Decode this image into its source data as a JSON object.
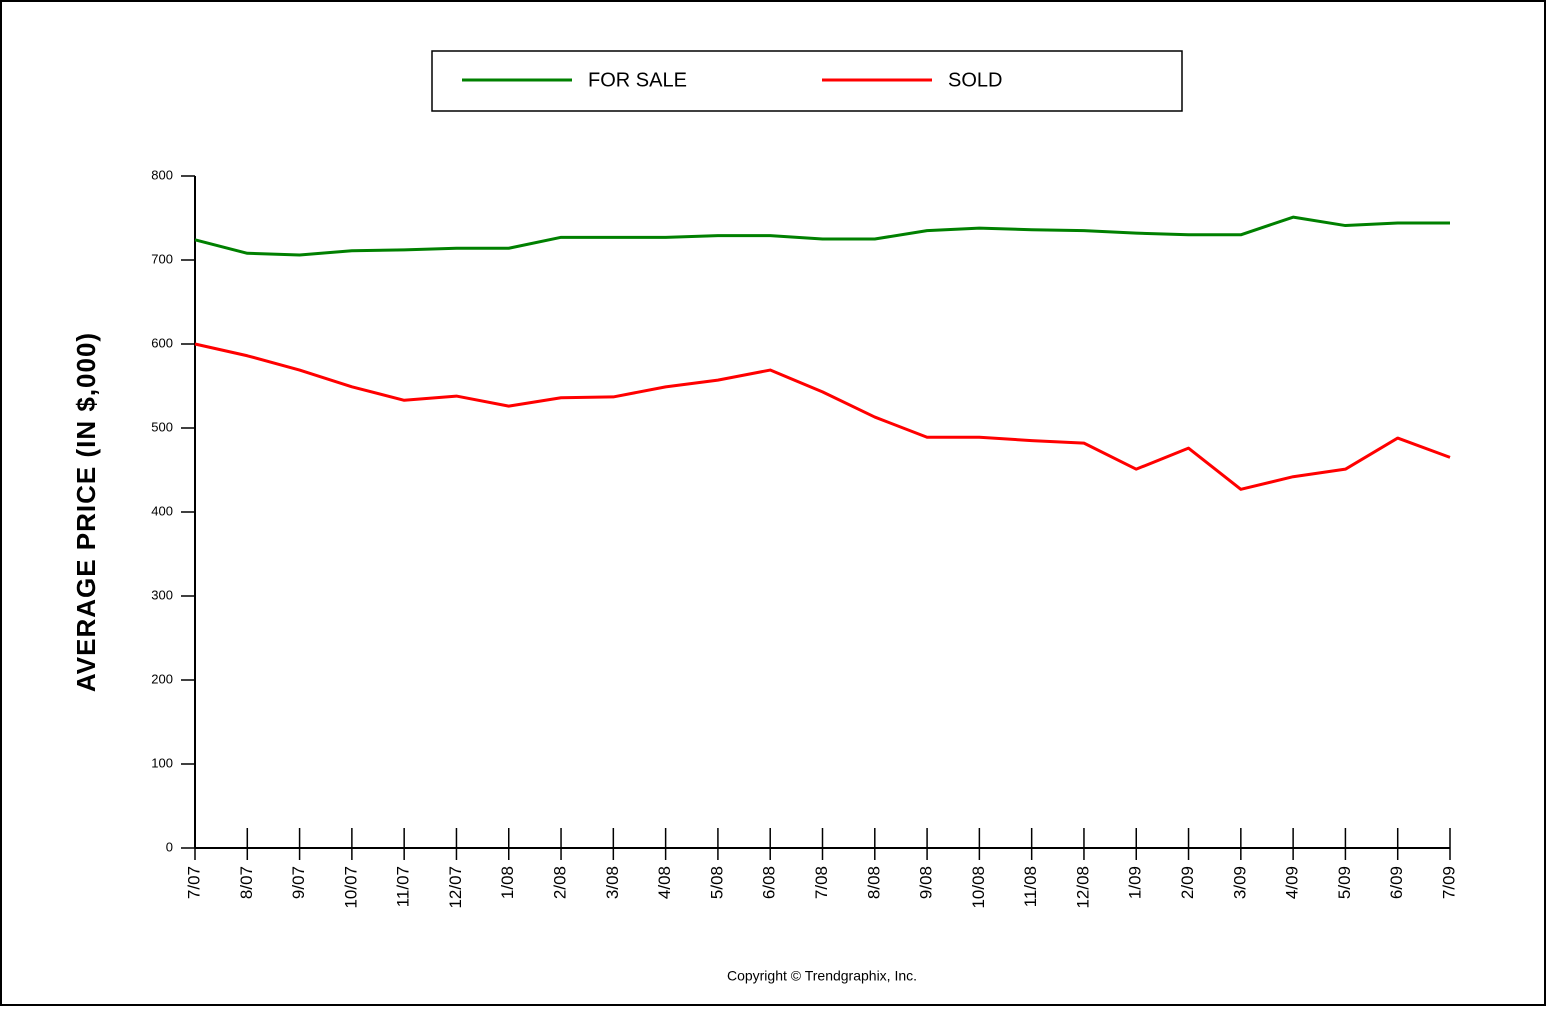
{
  "chart_data": {
    "type": "line",
    "y_label": "AVERAGE PRICE (IN $,000)",
    "footer": "Copyright © Trendgraphix, Inc.",
    "categories": [
      "7/07",
      "8/07",
      "9/07",
      "10/07",
      "11/07",
      "12/07",
      "1/08",
      "2/08",
      "3/08",
      "4/08",
      "5/08",
      "6/08",
      "7/08",
      "8/08",
      "9/08",
      "10/08",
      "11/08",
      "12/08",
      "1/09",
      "2/09",
      "3/09",
      "4/09",
      "5/09",
      "6/09",
      "7/09"
    ],
    "series": [
      {
        "name": "FOR SALE",
        "color": "#008000",
        "values": [
          724,
          708,
          706,
          711,
          712,
          714,
          714,
          727,
          727,
          727,
          729,
          729,
          725,
          725,
          735,
          738,
          736,
          735,
          732,
          730,
          730,
          751,
          741,
          744,
          744
        ]
      },
      {
        "name": "SOLD",
        "color": "#ff0000",
        "values": [
          600,
          586,
          569,
          549,
          533,
          538,
          526,
          536,
          537,
          549,
          557,
          569,
          543,
          513,
          489,
          489,
          485,
          482,
          451,
          476,
          427,
          442,
          451,
          488,
          465
        ]
      }
    ],
    "ylim": [
      0,
      800
    ],
    "yticks": [
      0,
      100,
      200,
      300,
      400,
      500,
      600,
      700,
      800
    ],
    "grid": false
  }
}
